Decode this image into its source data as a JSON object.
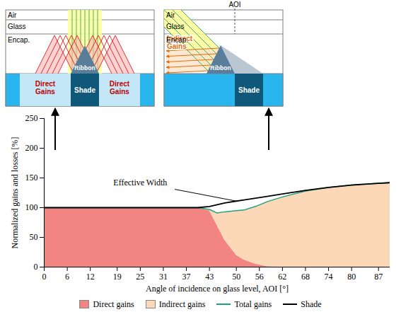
{
  "chart_data": {
    "type": "area",
    "x_label": "Angle of incidence on glass level, AOI [°]",
    "y_label": "Normalized gains and losses [%]",
    "x": [
      0,
      6,
      12,
      19,
      25,
      31,
      37,
      40,
      43,
      45,
      47,
      50,
      52,
      55,
      58,
      62,
      68,
      74,
      80,
      87,
      90
    ],
    "series": [
      {
        "name": "Direct gains",
        "type": "area",
        "color": "#f28482",
        "values": [
          100,
          100,
          100,
          100,
          100,
          100,
          100,
          100,
          95,
          70,
          45,
          20,
          12,
          5,
          1,
          0,
          0,
          0,
          0,
          0,
          0
        ]
      },
      {
        "name": "Indirect gains",
        "type": "area",
        "color": "#fcd8b8",
        "values": [
          0,
          0,
          0,
          0,
          0,
          0,
          0,
          0,
          2,
          21,
          48,
          75,
          84,
          97,
          109,
          118,
          128,
          134,
          138,
          141,
          142
        ]
      },
      {
        "name": "Total gains",
        "type": "line",
        "color": "#1fa57d",
        "values": [
          100,
          100,
          100,
          100,
          100,
          100,
          100,
          100,
          97,
          91,
          93,
          95,
          96,
          102,
          110,
          118,
          128,
          134,
          138,
          141,
          142
        ]
      },
      {
        "name": "Shade",
        "type": "line",
        "color": "#000000",
        "values": [
          100,
          100,
          100,
          100,
          100,
          100,
          100,
          100,
          102,
          105,
          108,
          111,
          113,
          116,
          119,
          123,
          129,
          134,
          138,
          141,
          142
        ]
      }
    ],
    "stacked": true,
    "xlim": [
      0,
      90
    ],
    "ylim": [
      0,
      250
    ],
    "xticks": [
      0,
      6,
      12,
      19,
      25,
      31,
      37,
      43,
      50,
      56,
      62,
      68,
      74,
      80,
      87
    ],
    "yticks": [
      0,
      50,
      100,
      150,
      200,
      250
    ],
    "legend": "bottom",
    "annotations": [
      {
        "text": "Effective Width",
        "x": 25,
        "y": 142,
        "point_x": 50,
        "point_y": 111
      }
    ]
  },
  "diagram": {
    "layers": [
      "Air",
      "Glass",
      "Encap."
    ],
    "ribbon": "Ribbon",
    "shade": "Shade",
    "direct_gains": "Direct Gains",
    "indirect_gains": "Indirect Gains",
    "aoi": "AOI"
  }
}
